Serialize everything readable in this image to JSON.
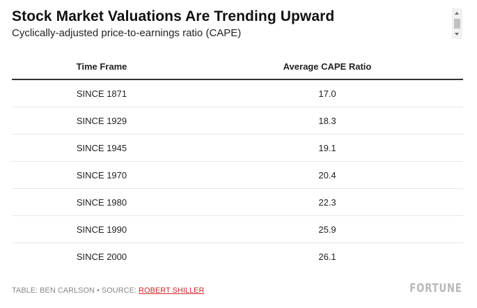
{
  "header": {
    "title": "Stock Market Valuations Are Trending Upward",
    "subtitle": "Cyclically-adjusted price-to-earnings ratio (CAPE)"
  },
  "table": {
    "columns": [
      "Time Frame",
      "Average CAPE Ratio"
    ],
    "rows": [
      {
        "time_frame": "SINCE 1871",
        "cape": "17.0"
      },
      {
        "time_frame": "SINCE 1929",
        "cape": "18.3"
      },
      {
        "time_frame": "SINCE 1945",
        "cape": "19.1"
      },
      {
        "time_frame": "SINCE 1970",
        "cape": "20.4"
      },
      {
        "time_frame": "SINCE 1980",
        "cape": "22.3"
      },
      {
        "time_frame": "SINCE 1990",
        "cape": "25.9"
      },
      {
        "time_frame": "SINCE 2000",
        "cape": "26.1"
      }
    ]
  },
  "footer": {
    "credit": "TABLE: BEN CARLSON",
    "separator": "•",
    "source_label": "SOURCE:",
    "source_link": "ROBERT SHILLER",
    "brand": "FORTUNE"
  },
  "colors": {
    "link": "#cc2a2a",
    "brand": "#b8b8b8",
    "header_rule": "#333333"
  },
  "icons": {
    "scroll_up": "scroll-up-arrow-icon",
    "scroll_down": "scroll-down-arrow-icon"
  }
}
